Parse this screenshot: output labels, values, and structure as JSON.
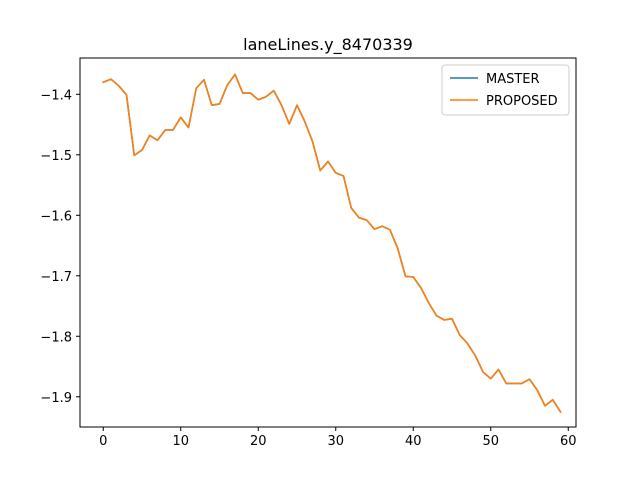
{
  "chart_data": {
    "type": "line",
    "title": "laneLines.y_8470339",
    "xlabel": "",
    "ylabel": "",
    "xlim": [
      -3,
      61
    ],
    "ylim": [
      -1.95,
      -1.34
    ],
    "xticks": [
      0,
      10,
      20,
      30,
      40,
      50,
      60
    ],
    "yticks": [
      -1.4,
      -1.5,
      -1.6,
      -1.7,
      -1.8,
      -1.9
    ],
    "ytick_labels": [
      "−1.4",
      "−1.5",
      "−1.6",
      "−1.7",
      "−1.8",
      "−1.9"
    ],
    "grid": false,
    "legend": "top-right",
    "x": [
      0,
      1,
      2,
      3,
      4,
      5,
      6,
      7,
      8,
      9,
      10,
      11,
      12,
      13,
      14,
      15,
      16,
      17,
      18,
      19,
      20,
      21,
      22,
      23,
      24,
      25,
      26,
      27,
      28,
      29,
      30,
      31,
      32,
      33,
      34,
      35,
      36,
      37,
      38,
      39,
      40,
      41,
      42,
      43,
      44,
      45,
      46,
      47,
      48,
      49,
      50,
      51,
      52,
      53,
      54,
      55,
      56,
      57,
      58,
      59
    ],
    "series": [
      {
        "name": "MASTER",
        "color": "#1f77b4",
        "values": [
          -1.38,
          -1.375,
          -1.386,
          -1.401,
          -1.501,
          -1.492,
          -1.468,
          -1.476,
          -1.459,
          -1.459,
          -1.438,
          -1.455,
          -1.39,
          -1.376,
          -1.418,
          -1.416,
          -1.385,
          -1.367,
          -1.398,
          -1.398,
          -1.409,
          -1.404,
          -1.394,
          -1.418,
          -1.449,
          -1.418,
          -1.445,
          -1.478,
          -1.526,
          -1.511,
          -1.53,
          -1.535,
          -1.588,
          -1.604,
          -1.608,
          -1.623,
          -1.618,
          -1.624,
          -1.655,
          -1.701,
          -1.702,
          -1.72,
          -1.745,
          -1.766,
          -1.773,
          -1.771,
          -1.798,
          -1.812,
          -1.832,
          -1.859,
          -1.87,
          -1.855,
          -1.878,
          -1.878,
          -1.878,
          -1.871,
          -1.889,
          -1.915,
          -1.905,
          -1.925
        ]
      },
      {
        "name": "PROPOSED",
        "color": "#ff7f0e",
        "values": [
          -1.38,
          -1.375,
          -1.386,
          -1.401,
          -1.501,
          -1.492,
          -1.468,
          -1.476,
          -1.459,
          -1.459,
          -1.438,
          -1.455,
          -1.39,
          -1.376,
          -1.418,
          -1.416,
          -1.385,
          -1.367,
          -1.398,
          -1.398,
          -1.409,
          -1.404,
          -1.394,
          -1.418,
          -1.449,
          -1.418,
          -1.445,
          -1.478,
          -1.526,
          -1.511,
          -1.53,
          -1.535,
          -1.588,
          -1.604,
          -1.608,
          -1.623,
          -1.618,
          -1.624,
          -1.655,
          -1.701,
          -1.702,
          -1.72,
          -1.745,
          -1.766,
          -1.773,
          -1.771,
          -1.798,
          -1.812,
          -1.832,
          -1.859,
          -1.87,
          -1.855,
          -1.878,
          -1.878,
          -1.878,
          -1.871,
          -1.889,
          -1.915,
          -1.905,
          -1.925
        ]
      }
    ]
  }
}
